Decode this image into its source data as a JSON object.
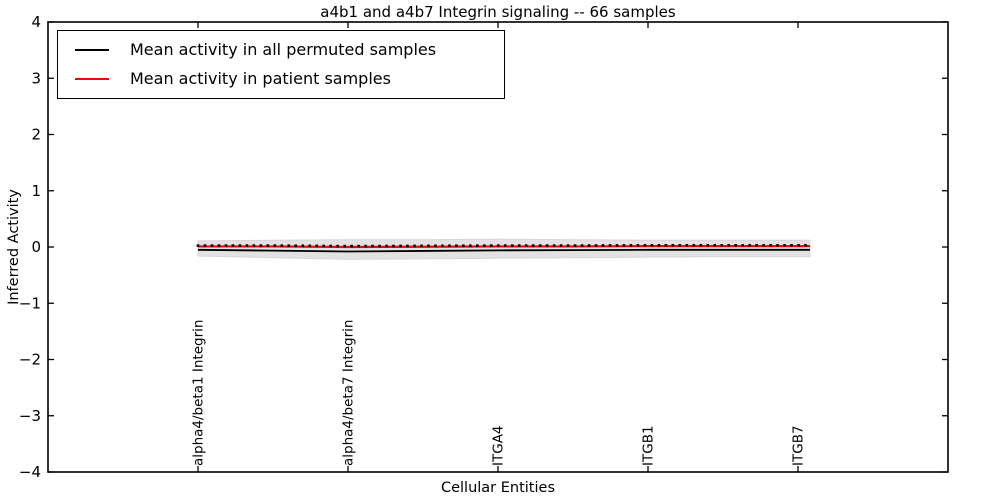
{
  "chart_data": {
    "type": "line",
    "title": "a4b1 and a4b7 Integrin signaling -- 66 samples",
    "sample_count": 66,
    "x_axis": {
      "label": "Cellular Entities",
      "xlim": [
        0,
        6
      ],
      "categories": [
        "alpha4/beta1 Integrin",
        "alpha4/beta7 Integrin",
        "ITGA4",
        "ITGB1",
        "ITGB7"
      ],
      "category_positions": [
        1,
        2,
        3,
        4,
        5
      ]
    },
    "y_axis": {
      "label": "Inferred Activity",
      "ylim": [
        -4,
        4
      ],
      "ticks": [
        {
          "value": 4,
          "label": "4"
        },
        {
          "value": 3,
          "label": "3"
        },
        {
          "value": 2,
          "label": "2"
        },
        {
          "value": 1,
          "label": "1"
        },
        {
          "value": 0,
          "label": "0"
        },
        {
          "value": -1,
          "label": "−1"
        },
        {
          "value": -2,
          "label": "−2"
        },
        {
          "value": -3,
          "label": "−3"
        },
        {
          "value": -4,
          "label": "−4"
        }
      ]
    },
    "grid": false,
    "legend": {
      "position": "upper left",
      "entries": [
        {
          "label": "Mean activity in all permuted samples",
          "color": "#000000"
        },
        {
          "label": "Mean activity in patient samples",
          "color": "#ff0000"
        }
      ]
    },
    "band": {
      "color": "#e2e2e2",
      "x": [
        1.0,
        1.5,
        2.0,
        2.5,
        3.0,
        3.5,
        4.0,
        4.5,
        5.08
      ],
      "upper": [
        0.11,
        0.12,
        0.13,
        0.13,
        0.14,
        0.13,
        0.12,
        0.12,
        0.12
      ],
      "lower": [
        -0.16,
        -0.19,
        -0.22,
        -0.21,
        -0.2,
        -0.19,
        -0.18,
        -0.17,
        -0.17
      ]
    },
    "series": [
      {
        "name": "Mean activity in all permuted samples",
        "color": "#000000",
        "line_width": 1.8,
        "x": [
          1.0,
          1.5,
          2.0,
          2.5,
          3.0,
          3.5,
          4.0,
          4.5,
          5.08
        ],
        "y": [
          -0.05,
          -0.065,
          -0.08,
          -0.07,
          -0.06,
          -0.055,
          -0.05,
          -0.05,
          -0.05
        ]
      },
      {
        "name": "Mean activity in patient samples",
        "color": "#ff0000",
        "line_width": 2.2,
        "x": [
          1.0,
          1.5,
          2.0,
          2.5,
          3.0,
          3.5,
          4.0,
          4.5,
          5.08
        ],
        "y": [
          0.01,
          0.01,
          0.0,
          0.005,
          0.01,
          0.01,
          0.015,
          0.015,
          0.015
        ],
        "marker": "square",
        "marker_color": "#000000",
        "marker_count": 88,
        "marker_x_start": 1.0,
        "marker_x_end": 5.05,
        "marker_y_offset": 0.015
      }
    ]
  }
}
